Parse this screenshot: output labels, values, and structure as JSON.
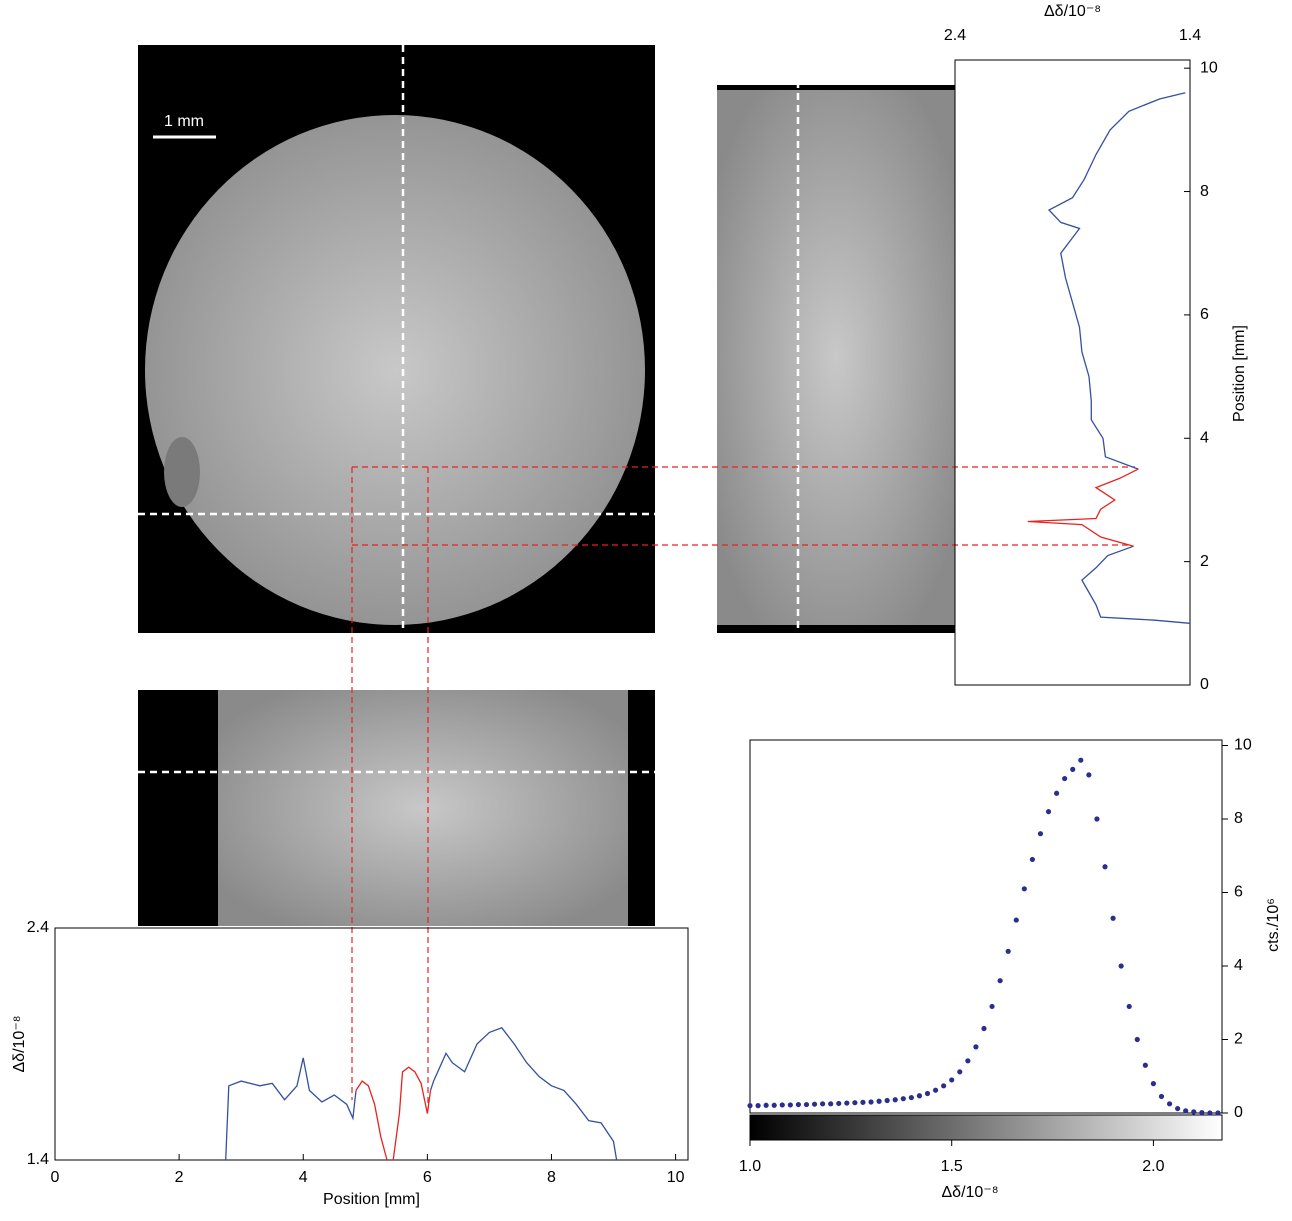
{
  "scale_bar": "1 mm",
  "chart_data": [
    {
      "type": "line",
      "xlabel": "Position [mm]",
      "ylabel": "Δδ/10⁻⁸",
      "xlim": [
        0,
        10.2
      ],
      "xticks": [
        0,
        2,
        4,
        6,
        8,
        10
      ],
      "ylim": [
        1.4,
        2.4
      ],
      "yticks": [
        1.4,
        2.4
      ],
      "series": [
        {
          "color": "#34509e",
          "x": [
            2.75,
            2.8,
            3.0,
            3.3,
            3.5,
            3.7,
            3.9,
            4.0,
            4.1,
            4.3,
            4.5,
            4.7,
            4.8,
            4.85,
            5.5,
            6.05,
            6.1,
            6.3,
            6.4,
            6.6,
            6.8,
            7.0,
            7.2,
            7.4,
            7.6,
            7.8,
            8.0,
            8.2,
            8.4,
            8.6,
            8.8,
            9.0,
            9.05
          ],
          "values": [
            1.4,
            1.72,
            1.74,
            1.72,
            1.73,
            1.66,
            1.72,
            1.84,
            1.7,
            1.65,
            1.68,
            1.64,
            1.58,
            1.7,
            null,
            1.7,
            1.74,
            1.86,
            1.82,
            1.78,
            1.9,
            1.95,
            1.97,
            1.9,
            1.82,
            1.76,
            1.72,
            1.7,
            1.64,
            1.57,
            1.56,
            1.48,
            1.4
          ]
        },
        {
          "color": "#e8231f",
          "x": [
            4.85,
            4.95,
            5.05,
            5.15,
            5.25,
            5.35,
            5.4,
            5.45,
            5.55,
            5.6,
            5.7,
            5.8,
            5.9,
            6.0,
            6.05
          ],
          "values": [
            1.7,
            1.74,
            1.72,
            1.64,
            1.5,
            1.4,
            null,
            1.4,
            1.6,
            1.78,
            1.8,
            1.78,
            1.73,
            1.6,
            1.7
          ]
        }
      ]
    },
    {
      "type": "line",
      "orientation": "vertical",
      "xlabel": "Δδ/10⁻⁸",
      "ylabel": "Position [mm]",
      "xlim": [
        2.4,
        1.4
      ],
      "xticks": [
        2.4,
        1.4
      ],
      "ylim": [
        0,
        10.1
      ],
      "yticks": [
        0,
        2,
        4,
        6,
        8,
        10
      ],
      "series": [
        {
          "color": "#34509e",
          "y": [
            1.0,
            1.05,
            1.1,
            1.3,
            1.5,
            1.7,
            1.9,
            2.1,
            2.25,
            3.0,
            3.5,
            3.7,
            4.0,
            4.3,
            4.6,
            5.0,
            5.4,
            5.8,
            6.2,
            6.6,
            7.0,
            7.4,
            7.5,
            7.7,
            7.9,
            8.2,
            8.6,
            9.0,
            9.3,
            9.5,
            9.6
          ],
          "values": [
            1.4,
            1.55,
            1.78,
            1.8,
            1.83,
            1.86,
            1.8,
            1.75,
            1.64,
            null,
            1.62,
            1.76,
            1.77,
            1.82,
            1.82,
            1.83,
            1.86,
            1.87,
            1.9,
            1.93,
            1.95,
            1.87,
            1.95,
            2.0,
            1.9,
            1.85,
            1.8,
            1.74,
            1.66,
            1.53,
            1.42
          ]
        },
        {
          "color": "#e8231f",
          "y": [
            2.25,
            2.4,
            2.6,
            2.65,
            2.7,
            2.85,
            3.0,
            3.2,
            3.35,
            3.5
          ],
          "values": [
            1.64,
            1.78,
            1.86,
            2.09,
            1.8,
            1.78,
            1.72,
            1.8,
            1.7,
            1.62
          ]
        }
      ]
    },
    {
      "type": "scatter",
      "xlabel": "Δδ/10⁻⁸",
      "ylabel": "cts./10⁶",
      "color": "#2a2f8f",
      "xlim": [
        1.0,
        2.17
      ],
      "xticks": [
        {
          "value": 1,
          "label": "1.0"
        },
        1.5,
        {
          "value": 2,
          "label": "2.0"
        }
      ],
      "ylim": [
        0,
        10.15
      ],
      "yticks": [
        0,
        2,
        4,
        6,
        8,
        10
      ],
      "x": [
        1.0,
        1.02,
        1.04,
        1.06,
        1.08,
        1.1,
        1.12,
        1.14,
        1.16,
        1.18,
        1.2,
        1.22,
        1.24,
        1.26,
        1.28,
        1.3,
        1.32,
        1.34,
        1.36,
        1.38,
        1.4,
        1.42,
        1.44,
        1.46,
        1.48,
        1.5,
        1.52,
        1.54,
        1.56,
        1.58,
        1.6,
        1.62,
        1.64,
        1.66,
        1.68,
        1.7,
        1.72,
        1.74,
        1.76,
        1.78,
        1.8,
        1.82,
        1.84,
        1.86,
        1.88,
        1.9,
        1.92,
        1.94,
        1.96,
        1.98,
        2.0,
        2.02,
        2.04,
        2.06,
        2.08,
        2.1,
        2.12,
        2.14,
        2.16
      ],
      "values": [
        0.2,
        0.2,
        0.21,
        0.21,
        0.22,
        0.22,
        0.23,
        0.23,
        0.24,
        0.25,
        0.25,
        0.26,
        0.27,
        0.28,
        0.29,
        0.3,
        0.32,
        0.34,
        0.36,
        0.39,
        0.42,
        0.47,
        0.53,
        0.62,
        0.74,
        0.9,
        1.12,
        1.42,
        1.8,
        2.3,
        2.9,
        3.6,
        4.4,
        5.25,
        6.1,
        6.9,
        7.6,
        8.2,
        8.7,
        9.1,
        9.35,
        9.6,
        9.2,
        8.0,
        6.7,
        5.3,
        4.0,
        2.9,
        2.0,
        1.3,
        0.8,
        0.45,
        0.25,
        0.12,
        0.06,
        0.03,
        0.01,
        0.0,
        0.0
      ]
    }
  ]
}
